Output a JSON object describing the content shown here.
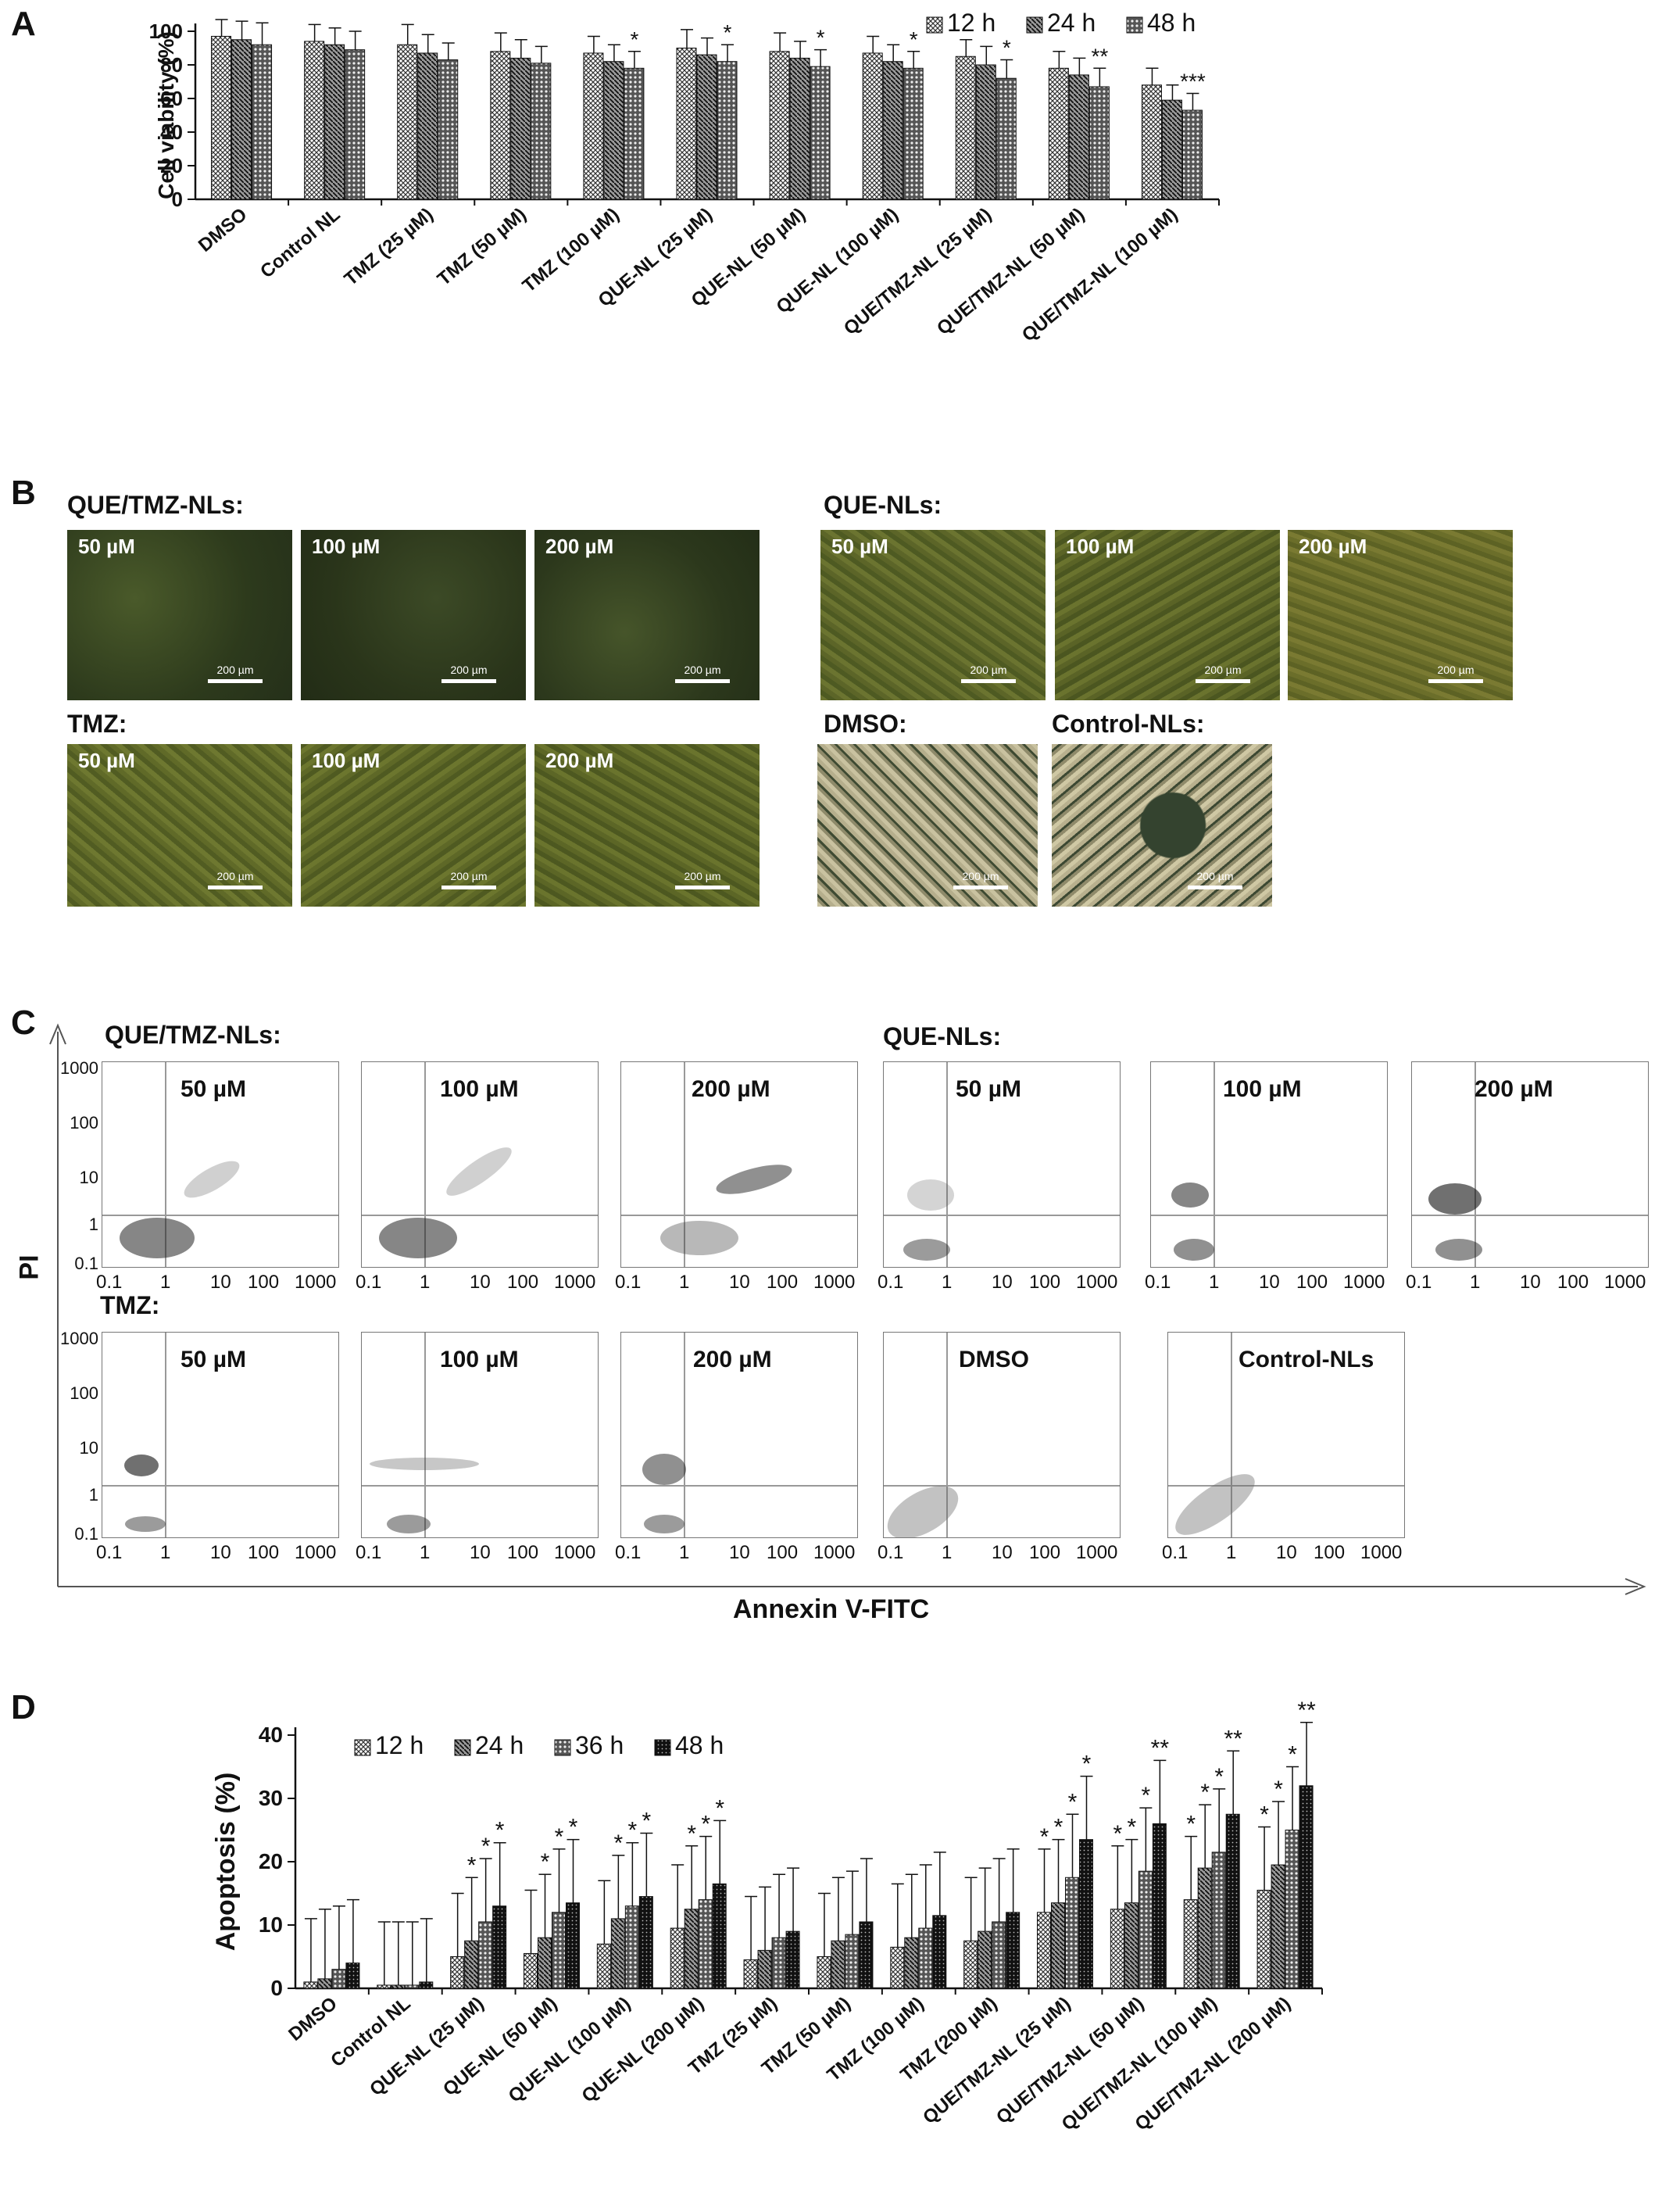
{
  "panels": {
    "a": "A",
    "b": "B",
    "c": "C",
    "d": "D"
  },
  "chart_data": [
    {
      "type": "bar",
      "ylabel": "Cell viability (%)",
      "ylim": [
        0,
        100
      ],
      "yticks": [
        "0",
        "20",
        "40",
        "60",
        "80",
        "100"
      ],
      "categories": [
        "DMSO",
        "Control NL",
        "TMZ (25 µM)",
        "TMZ (50 µM)",
        "TMZ (100 µM)",
        "QUE-NL (25 µM)",
        "QUE-NL (50 µM)",
        "QUE-NL (100 µM)",
        "QUE/TMZ-NL (25 µM)",
        "QUE/TMZ-NL (50 µM)",
        "QUE/TMZ-NL (100 µM)"
      ],
      "series": [
        {
          "name": "12 h",
          "values": [
            97,
            94,
            92,
            88,
            87,
            90,
            88,
            87,
            85,
            78,
            68
          ]
        },
        {
          "name": "24 h",
          "values": [
            95,
            92,
            87,
            84,
            82,
            86,
            84,
            82,
            80,
            74,
            59
          ]
        },
        {
          "name": "48 h",
          "values": [
            92,
            89,
            83,
            81,
            78,
            82,
            79,
            78,
            72,
            67,
            53
          ]
        }
      ],
      "errors": [
        [
          10,
          10,
          12,
          11,
          10,
          11,
          11,
          10,
          10,
          10,
          10
        ],
        [
          11,
          10,
          11,
          11,
          10,
          10,
          10,
          10,
          11,
          10,
          9
        ],
        [
          13,
          11,
          10,
          10,
          10,
          10,
          10,
          10,
          11,
          11,
          10
        ]
      ],
      "annotations": [
        "",
        "",
        "",
        "",
        "*",
        "*",
        "*",
        "*",
        "*",
        "**",
        "***"
      ],
      "legend": "top-right"
    },
    {
      "type": "bar",
      "ylabel": "Apoptosis (%)",
      "ylim": [
        0,
        40
      ],
      "yticks": [
        "0",
        "10",
        "20",
        "30",
        "40"
      ],
      "categories": [
        "DMSO",
        "Control NL",
        "QUE-NL (25 µM)",
        "QUE-NL (50 µM)",
        "QUE-NL (100 µM)",
        "QUE-NL (200 µM)",
        "TMZ (25 µM)",
        "TMZ (50 µM)",
        "TMZ (100 µM)",
        "TMZ (200 µM)",
        "QUE/TMZ-NL (25 µM)",
        "QUE/TMZ-NL (50 µM)",
        "QUE/TMZ-NL (100 µM)",
        "QUE/TMZ-NL (200 µM)"
      ],
      "series": [
        {
          "name": "12 h",
          "values": [
            1,
            0.5,
            5,
            5.5,
            7,
            9.5,
            4.5,
            5,
            6.5,
            7.5,
            12,
            12.5,
            14,
            15.5
          ]
        },
        {
          "name": "24 h",
          "values": [
            1.5,
            0.5,
            7.5,
            8,
            11,
            12.5,
            6,
            7.5,
            8,
            9,
            13.5,
            13.5,
            19,
            19.5
          ]
        },
        {
          "name": "36 h",
          "values": [
            3,
            0.5,
            10.5,
            12,
            13,
            14,
            8,
            8.5,
            9.5,
            10.5,
            17.5,
            18.5,
            21.5,
            25
          ]
        },
        {
          "name": "48 h",
          "values": [
            4,
            1,
            13,
            13.5,
            14.5,
            16.5,
            9,
            10.5,
            11.5,
            12,
            23.5,
            26,
            27.5,
            32
          ]
        }
      ],
      "errors": [
        [
          10,
          10,
          10,
          10,
          10,
          10,
          10,
          10,
          10,
          10,
          10,
          10,
          10,
          10
        ],
        [
          11,
          10,
          10,
          10,
          10,
          10,
          10,
          10,
          10,
          10,
          10,
          10,
          10,
          10
        ],
        [
          10,
          10,
          10,
          10,
          10,
          10,
          10,
          10,
          10,
          10,
          10,
          10,
          10,
          10
        ],
        [
          10,
          10,
          10,
          10,
          10,
          10,
          10,
          10,
          10,
          10,
          10,
          10,
          10,
          10
        ]
      ],
      "annotations": [
        [
          "",
          "",
          "",
          ""
        ],
        [
          "",
          "",
          "",
          ""
        ],
        [
          "",
          "*",
          "*",
          "*"
        ],
        [
          "",
          "*",
          "*",
          "*"
        ],
        [
          "",
          "*",
          "*",
          "*"
        ],
        [
          "",
          "*",
          "*",
          "*"
        ],
        [
          "",
          "",
          "",
          ""
        ],
        [
          "",
          "",
          "",
          ""
        ],
        [
          "",
          "",
          "",
          ""
        ],
        [
          "",
          "",
          "",
          ""
        ],
        [
          "*",
          "*",
          "*",
          "*"
        ],
        [
          "*",
          "*",
          "*",
          "**"
        ],
        [
          "*",
          "*",
          "*",
          "**"
        ],
        [
          "*",
          "*",
          "*",
          "**"
        ]
      ],
      "legend": "top-left"
    }
  ],
  "micrographs": {
    "que_tmz_title": "QUE/TMZ-NLs:",
    "tmz_title": "TMZ:",
    "que_title": "QUE-NLs:",
    "dmso_title": "DMSO:",
    "control_title": "Control-NLs:",
    "concs": [
      "50 µM",
      "100 µM",
      "200 µM"
    ],
    "scale": "200 µm"
  },
  "flow": {
    "que_tmz_title": "QUE/TMZ-NLs:",
    "que_title": "QUE-NLs:",
    "tmz_title": "TMZ:",
    "concs": [
      "50 µM",
      "100 µM",
      "200 µM"
    ],
    "dmso": "DMSO",
    "control": "Control-NLs",
    "y_ticks": [
      "1000",
      "100",
      "10",
      "1",
      "0.1"
    ],
    "x_ticks": [
      "0.1",
      "1",
      "10",
      "100",
      "1000"
    ],
    "ylabel": "PI",
    "xlabel": "Annexin V-FITC"
  }
}
